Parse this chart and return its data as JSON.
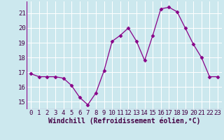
{
  "x": [
    0,
    1,
    2,
    3,
    4,
    5,
    6,
    7,
    8,
    9,
    10,
    11,
    12,
    13,
    14,
    15,
    16,
    17,
    18,
    19,
    20,
    21,
    22,
    23
  ],
  "y": [
    16.9,
    16.7,
    16.7,
    16.7,
    16.6,
    16.1,
    15.3,
    14.8,
    15.6,
    17.1,
    19.1,
    19.5,
    20.0,
    19.1,
    17.8,
    19.5,
    21.3,
    21.4,
    21.1,
    20.0,
    18.9,
    18.0,
    16.7,
    16.7
  ],
  "line_color": "#880088",
  "marker": "D",
  "marker_size": 2.5,
  "bg_color": "#cce8ee",
  "grid_color": "#ffffff",
  "xlabel": "Windchill (Refroidissement éolien,°C)",
  "xlabel_color": "#440044",
  "tick_color": "#440044",
  "ylim": [
    14.5,
    21.8
  ],
  "xlim": [
    -0.5,
    23.5
  ],
  "yticks": [
    15,
    16,
    17,
    18,
    19,
    20,
    21
  ],
  "font_size": 6.5,
  "xlabel_font_size": 7.0,
  "lw": 0.9
}
